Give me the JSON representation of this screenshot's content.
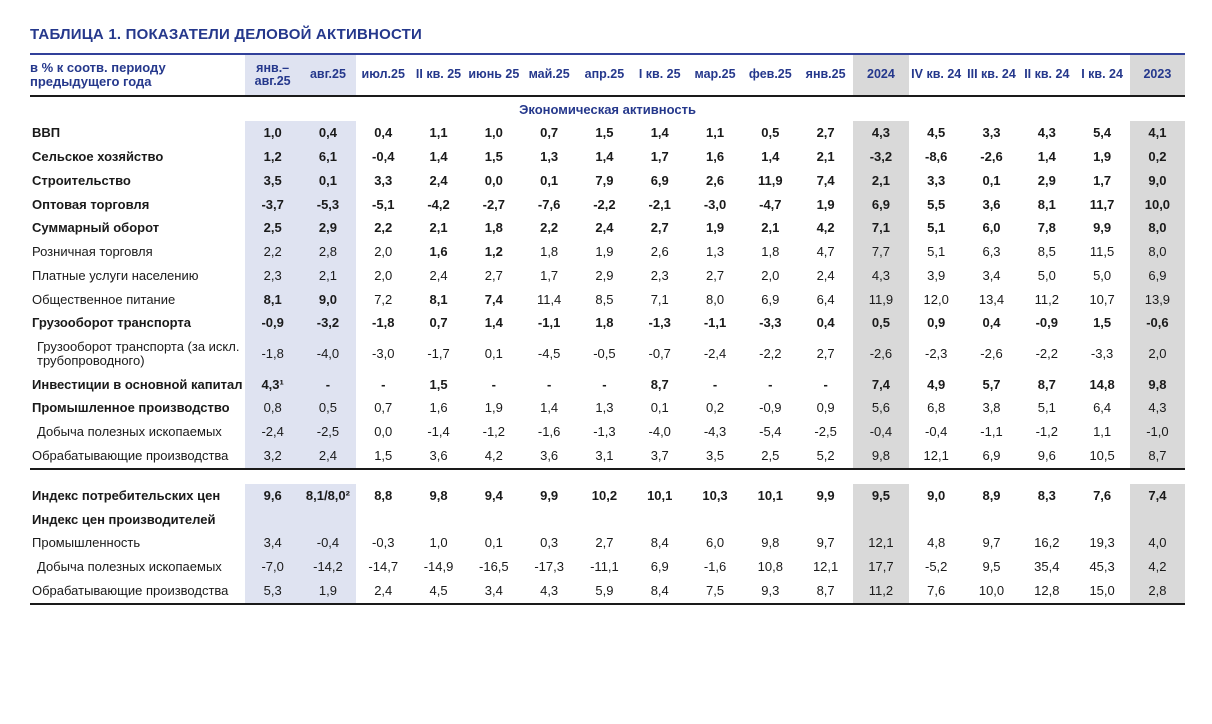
{
  "page": {
    "title": "ТАБЛИЦА 1. ПОКАЗАТЕЛИ ДЕЛОВОЙ АКТИВНОСТИ"
  },
  "chart_data": {
    "type": "table",
    "title": "ТАБЛИЦА 1. ПОКАЗАТЕЛИ ДЕЛОВОЙ АКТИВНОСТИ",
    "row_header_label": "в % к соотв. периоду предыдущего года",
    "columns": [
      "янв.–авг.25",
      "авг.25",
      "июл.25",
      "II кв. 25",
      "июнь 25",
      "май.25",
      "апр.25",
      "I кв. 25",
      "мар.25",
      "фев.25",
      "янв.25",
      "2024",
      "IV кв. 24",
      "III кв. 24",
      "II кв. 24",
      "I кв. 24",
      "2023"
    ],
    "highlight_blue_columns": [
      0,
      1
    ],
    "highlight_gray_columns": [
      11,
      16
    ],
    "colors": {
      "accent_navy": "#25388c",
      "highlight_blue": "#dfe3f1",
      "highlight_gray": "#d9d9d9"
    },
    "footnote_markers": [
      "¹",
      "²"
    ],
    "sections": [
      {
        "header": "Экономическая активность",
        "rows": [
          {
            "label": "ВВП",
            "bold": true,
            "values": [
              "1,0",
              "0,4",
              "0,4",
              "1,1",
              "1,0",
              "0,7",
              "1,5",
              "1,4",
              "1,1",
              "0,5",
              "2,7",
              "4,3",
              "4,5",
              "3,3",
              "4,3",
              "5,4",
              "4,1"
            ]
          },
          {
            "label": "Сельское хозяйство",
            "bold": true,
            "values": [
              "1,2",
              "6,1",
              "-0,4",
              "1,4",
              "1,5",
              "1,3",
              "1,4",
              "1,7",
              "1,6",
              "1,4",
              "2,1",
              "-3,2",
              "-8,6",
              "-2,6",
              "1,4",
              "1,9",
              "0,2"
            ]
          },
          {
            "label": "Строительство",
            "bold": true,
            "values": [
              "3,5",
              "0,1",
              "3,3",
              "2,4",
              "0,0",
              "0,1",
              "7,9",
              "6,9",
              "2,6",
              "11,9",
              "7,4",
              "2,1",
              "3,3",
              "0,1",
              "2,9",
              "1,7",
              "9,0"
            ]
          },
          {
            "label": "Оптовая торговля",
            "bold": true,
            "values": [
              "-3,7",
              "-5,3",
              "-5,1",
              "-4,2",
              "-2,7",
              "-7,6",
              "-2,2",
              "-2,1",
              "-3,0",
              "-4,7",
              "1,9",
              "6,9",
              "5,5",
              "3,6",
              "8,1",
              "11,7",
              "10,0"
            ]
          },
          {
            "label": "Суммарный оборот",
            "bold": true,
            "values": [
              "2,5",
              "2,9",
              "2,2",
              "2,1",
              "1,8",
              "2,2",
              "2,4",
              "2,7",
              "1,9",
              "2,1",
              "4,2",
              "7,1",
              "5,1",
              "6,0",
              "7,8",
              "9,9",
              "8,0"
            ]
          },
          {
            "label": "Розничная торговля",
            "bold_cells": [
              3,
              4
            ],
            "values": [
              "2,2",
              "2,8",
              "2,0",
              "1,6",
              "1,2",
              "1,8",
              "1,9",
              "2,6",
              "1,3",
              "1,8",
              "4,7",
              "7,7",
              "5,1",
              "6,3",
              "8,5",
              "11,5",
              "8,0"
            ]
          },
          {
            "label": "Платные услуги населению",
            "values": [
              "2,3",
              "2,1",
              "2,0",
              "2,4",
              "2,7",
              "1,7",
              "2,9",
              "2,3",
              "2,7",
              "2,0",
              "2,4",
              "4,3",
              "3,9",
              "3,4",
              "5,0",
              "5,0",
              "6,9"
            ]
          },
          {
            "label": "Общественное питание",
            "bold_cells": [
              0,
              1,
              3,
              4
            ],
            "values": [
              "8,1",
              "9,0",
              "7,2",
              "8,1",
              "7,4",
              "11,4",
              "8,5",
              "7,1",
              "8,0",
              "6,9",
              "6,4",
              "11,9",
              "12,0",
              "13,4",
              "11,2",
              "10,7",
              "13,9"
            ]
          },
          {
            "label": "Грузооборот транспорта",
            "bold": true,
            "values": [
              "-0,9",
              "-3,2",
              "-1,8",
              "0,7",
              "1,4",
              "-1,1",
              "1,8",
              "-1,3",
              "-1,1",
              "-3,3",
              "0,4",
              "0,5",
              "0,9",
              "0,4",
              "-0,9",
              "1,5",
              "-0,6"
            ]
          },
          {
            "label": "Грузооборот транспорта (за искл. трубопроводного)",
            "indent": true,
            "values": [
              "-1,8",
              "-4,0",
              "-3,0",
              "-1,7",
              "0,1",
              "-4,5",
              "-0,5",
              "-0,7",
              "-2,4",
              "-2,2",
              "2,7",
              "-2,6",
              "-2,3",
              "-2,6",
              "-2,2",
              "-3,3",
              "2,0"
            ]
          },
          {
            "label": "Инвестиции в основной капитал",
            "bold": true,
            "values": [
              "4,3¹",
              "-",
              "-",
              "1,5",
              "-",
              "-",
              "-",
              "8,7",
              "-",
              "-",
              "-",
              "7,4",
              "4,9",
              "5,7",
              "8,7",
              "14,8",
              "9,8"
            ]
          },
          {
            "label": "Промышленное производство",
            "label_bold": true,
            "values": [
              "0,8",
              "0,5",
              "0,7",
              "1,6",
              "1,9",
              "1,4",
              "1,3",
              "0,1",
              "0,2",
              "-0,9",
              "0,9",
              "5,6",
              "6,8",
              "3,8",
              "5,1",
              "6,4",
              "4,3"
            ]
          },
          {
            "label": "Добыча полезных ископаемых",
            "indent": true,
            "values": [
              "-2,4",
              "-2,5",
              "0,0",
              "-1,4",
              "-1,2",
              "-1,6",
              "-1,3",
              "-4,0",
              "-4,3",
              "-5,4",
              "-2,5",
              "-0,4",
              "-0,4",
              "-1,1",
              "-1,2",
              "1,1",
              "-1,0"
            ]
          },
          {
            "label": "Обрабатывающие производства",
            "values": [
              "3,2",
              "2,4",
              "1,5",
              "3,6",
              "4,2",
              "3,6",
              "3,1",
              "3,7",
              "3,5",
              "2,5",
              "5,2",
              "9,8",
              "12,1",
              "6,9",
              "9,6",
              "10,5",
              "8,7"
            ]
          }
        ]
      },
      {
        "header": null,
        "rows": [
          {
            "label": "Индекс потребительских цен",
            "bold": true,
            "values": [
              "9,6",
              "8,1/8,0²",
              "8,8",
              "9,8",
              "9,4",
              "9,9",
              "10,2",
              "10,1",
              "10,3",
              "10,1",
              "9,9",
              "9,5",
              "9,0",
              "8,9",
              "8,3",
              "7,6",
              "7,4"
            ]
          },
          {
            "label": "Индекс цен производителей",
            "label_bold": true,
            "values": [
              "",
              "",
              "",
              "",
              "",
              "",
              "",
              "",
              "",
              "",
              "",
              "",
              "",
              "",
              "",
              "",
              ""
            ]
          },
          {
            "label": "Промышленность",
            "values": [
              "3,4",
              "-0,4",
              "-0,3",
              "1,0",
              "0,1",
              "0,3",
              "2,7",
              "8,4",
              "6,0",
              "9,8",
              "9,7",
              "12,1",
              "4,8",
              "9,7",
              "16,2",
              "19,3",
              "4,0"
            ]
          },
          {
            "label": "Добыча полезных ископаемых",
            "indent": true,
            "values": [
              "-7,0",
              "-14,2",
              "-14,7",
              "-14,9",
              "-16,5",
              "-17,3",
              "-11,1",
              "6,9",
              "-1,6",
              "10,8",
              "12,1",
              "17,7",
              "-5,2",
              "9,5",
              "35,4",
              "45,3",
              "4,2"
            ]
          },
          {
            "label": "Обрабатывающие производства",
            "values": [
              "5,3",
              "1,9",
              "2,4",
              "4,5",
              "3,4",
              "4,3",
              "5,9",
              "8,4",
              "7,5",
              "9,3",
              "8,7",
              "11,2",
              "7,6",
              "10,0",
              "12,8",
              "15,0",
              "2,8"
            ]
          }
        ]
      }
    ]
  }
}
